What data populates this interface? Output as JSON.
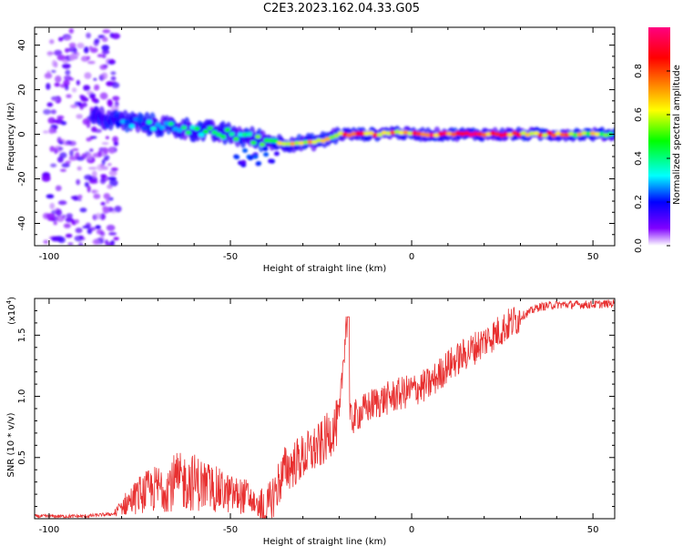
{
  "title": "C2E3.2023.162.04.33.G05",
  "chart_data": [
    {
      "type": "heatmap",
      "xlabel": "Height of straight line (km)",
      "ylabel": "Frequency (Hz)",
      "xlim": [
        -104,
        56
      ],
      "ylim": [
        -50,
        48
      ],
      "x_ticks": [
        -100,
        -50,
        0,
        50
      ],
      "y_ticks": [
        -40,
        -20,
        0,
        20,
        40
      ],
      "grid": false,
      "colorbar": {
        "label": "Normalized spectral amplitude",
        "range": [
          0,
          1
        ],
        "ticks": [
          0.0,
          0.2,
          0.4,
          0.6,
          0.8
        ],
        "colormap": [
          "#ffffff",
          "#8000ff",
          "#0000ff",
          "#00ffff",
          "#00ff00",
          "#ffff00",
          "#ff8000",
          "#ff0000",
          "#ff0080"
        ]
      },
      "ridge": {
        "x": [
          -90,
          -80,
          -70,
          -60,
          -50,
          -40,
          -35,
          -30,
          -25,
          -20,
          -15,
          -10,
          -5,
          0,
          5,
          10,
          20,
          30,
          40,
          50,
          56
        ],
        "frequency": [
          8,
          6,
          4,
          2,
          0,
          -3,
          -4,
          -4,
          -3,
          0,
          0,
          0,
          1,
          0,
          0,
          0,
          0,
          0,
          0,
          0,
          0
        ],
        "amplitude": [
          0.1,
          0.25,
          0.35,
          0.4,
          0.45,
          0.5,
          0.6,
          0.65,
          0.7,
          0.8,
          0.85,
          0.85,
          0.8,
          0.8,
          0.85,
          0.9,
          0.9,
          0.85,
          0.75,
          0.6,
          0.55
        ]
      }
    },
    {
      "type": "line",
      "xlabel": "Height of straight line (km)",
      "ylabel": "SNR (10 * v/v)",
      "y_scale_label": "(x10",
      "y_scale_exponent": "4",
      "y_scale_suffix": ")",
      "xlim": [
        -104,
        56
      ],
      "ylim": [
        0,
        18
      ],
      "x_ticks": [
        -100,
        -50,
        0,
        50
      ],
      "y_ticks": [
        5,
        10,
        15
      ],
      "y_tick_labels": [
        "0.5",
        "1.0",
        "1.5"
      ],
      "grid": false,
      "series": [
        {
          "color": "#e83030",
          "x": [
            -104,
            -90,
            -82,
            -80,
            -75,
            -70,
            -65,
            -60,
            -55,
            -50,
            -45,
            -42,
            -40,
            -38,
            -35,
            -30,
            -25,
            -20,
            -18,
            -17,
            -15,
            -10,
            -5,
            0,
            5,
            10,
            15,
            20,
            25,
            30,
            35,
            40,
            45,
            50,
            56
          ],
          "values": [
            0.2,
            0.2,
            0.4,
            1.0,
            2.0,
            2.5,
            3.0,
            3.0,
            2.5,
            2.0,
            1.8,
            0.8,
            0.5,
            2.0,
            4.0,
            5.0,
            6.0,
            8.0,
            16.5,
            8.0,
            8.5,
            9.5,
            10.0,
            10.5,
            11.0,
            12.5,
            13.5,
            14.5,
            15.5,
            16.5,
            17.3,
            17.5,
            17.5,
            17.5,
            17.6
          ]
        }
      ],
      "annotations": [
        {
          "x": -17,
          "y": 16.5,
          "text": ""
        }
      ]
    }
  ]
}
